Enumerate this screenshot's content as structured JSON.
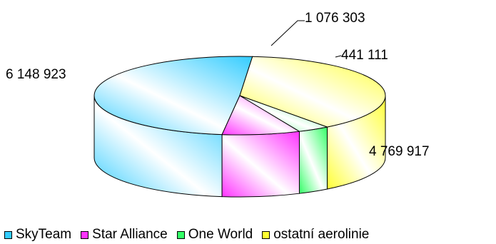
{
  "chart_data": {
    "type": "pie",
    "title": "",
    "series": [
      {
        "name": "SkyTeam",
        "value": 6148923,
        "label": "6 148 923",
        "color": "#33CCFF"
      },
      {
        "name": "Star Alliance",
        "value": 1076303,
        "label": "1 076 303",
        "color": "#FF33FF"
      },
      {
        "name": "One World",
        "value": 441111,
        "label": "441 111",
        "color": "#33FF66"
      },
      {
        "name": "ostatní aerolinie",
        "value": 4769917,
        "label": "4 769 917",
        "color": "#FFFF33"
      }
    ],
    "legend_position": "bottom",
    "style": "3d-exploded-look"
  }
}
